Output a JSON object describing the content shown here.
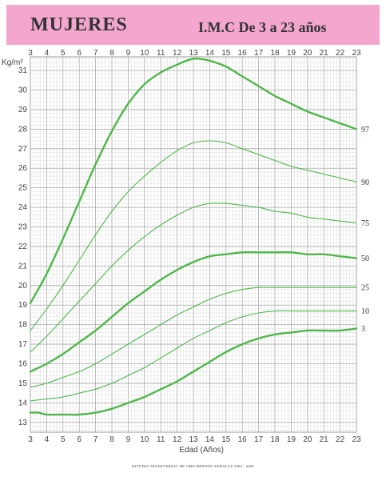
{
  "header": {
    "title": "MUJERES",
    "subtitle": "I.M.C  De 3 a 23 años"
  },
  "footer": {
    "note": "ESTUDIO TRANSVERSAL DE CRECIMIENTO ANDALUZ 2004 - 2005"
  },
  "chart_data": {
    "type": "line",
    "title": "I.M.C  De 3 a 23 años",
    "xlabel": "Edad (Años)",
    "ylabel": "Kg/m²",
    "xlim": [
      3,
      23
    ],
    "ylim": [
      12.5,
      31.7
    ],
    "x_ticks": [
      3,
      4,
      5,
      6,
      7,
      8,
      9,
      10,
      11,
      12,
      13,
      14,
      15,
      16,
      17,
      18,
      19,
      20,
      21,
      22,
      23
    ],
    "y_ticks": [
      13,
      14,
      15,
      16,
      17,
      18,
      19,
      20,
      21,
      22,
      23,
      24,
      25,
      26,
      27,
      28,
      29,
      30,
      31
    ],
    "grid": true,
    "series_color": "#4fb84a",
    "series": [
      {
        "name": "97",
        "bold": true,
        "x": [
          3,
          4,
          5,
          6,
          7,
          8,
          9,
          10,
          11,
          12,
          13,
          14,
          15,
          16,
          17,
          18,
          19,
          20,
          21,
          22,
          23
        ],
        "values": [
          19.1,
          20.6,
          22.4,
          24.3,
          26.2,
          27.9,
          29.3,
          30.3,
          30.9,
          31.3,
          31.6,
          31.5,
          31.2,
          30.7,
          30.2,
          29.7,
          29.3,
          28.9,
          28.6,
          28.3,
          28.0
        ]
      },
      {
        "name": "90",
        "bold": false,
        "x": [
          3,
          4,
          5,
          6,
          7,
          8,
          9,
          10,
          11,
          12,
          13,
          14,
          15,
          16,
          17,
          18,
          19,
          20,
          21,
          22,
          23
        ],
        "values": [
          17.7,
          18.8,
          20.0,
          21.3,
          22.6,
          23.8,
          24.8,
          25.6,
          26.3,
          26.9,
          27.3,
          27.4,
          27.3,
          27.0,
          26.7,
          26.4,
          26.1,
          25.9,
          25.7,
          25.5,
          25.3
        ]
      },
      {
        "name": "75",
        "bold": false,
        "x": [
          3,
          4,
          5,
          6,
          7,
          8,
          9,
          10,
          11,
          12,
          13,
          14,
          15,
          16,
          17,
          18,
          19,
          20,
          21,
          22,
          23
        ],
        "values": [
          16.6,
          17.4,
          18.3,
          19.2,
          20.1,
          21.0,
          21.8,
          22.5,
          23.1,
          23.6,
          24.0,
          24.2,
          24.2,
          24.1,
          24.0,
          23.8,
          23.7,
          23.5,
          23.4,
          23.3,
          23.2
        ]
      },
      {
        "name": "50",
        "bold": true,
        "x": [
          3,
          4,
          5,
          6,
          7,
          8,
          9,
          10,
          11,
          12,
          13,
          14,
          15,
          16,
          17,
          18,
          19,
          20,
          21,
          22,
          23
        ],
        "values": [
          15.6,
          16.0,
          16.5,
          17.1,
          17.7,
          18.4,
          19.1,
          19.7,
          20.3,
          20.8,
          21.2,
          21.5,
          21.6,
          21.7,
          21.7,
          21.7,
          21.7,
          21.6,
          21.6,
          21.5,
          21.4
        ]
      },
      {
        "name": "25",
        "bold": false,
        "x": [
          3,
          4,
          5,
          6,
          7,
          8,
          9,
          10,
          11,
          12,
          13,
          14,
          15,
          16,
          17,
          18,
          19,
          20,
          21,
          22,
          23
        ],
        "values": [
          14.8,
          15.0,
          15.3,
          15.6,
          16.0,
          16.5,
          17.0,
          17.5,
          18.0,
          18.5,
          18.9,
          19.3,
          19.6,
          19.8,
          19.9,
          19.9,
          19.9,
          19.9,
          19.9,
          19.9,
          19.9
        ]
      },
      {
        "name": "10",
        "bold": false,
        "x": [
          3,
          4,
          5,
          6,
          7,
          8,
          9,
          10,
          11,
          12,
          13,
          14,
          15,
          16,
          17,
          18,
          19,
          20,
          21,
          22,
          23
        ],
        "values": [
          14.1,
          14.2,
          14.3,
          14.5,
          14.7,
          15.0,
          15.4,
          15.8,
          16.3,
          16.8,
          17.3,
          17.7,
          18.1,
          18.4,
          18.6,
          18.7,
          18.7,
          18.7,
          18.7,
          18.7,
          18.7
        ]
      },
      {
        "name": "3",
        "bold": true,
        "x": [
          3,
          3.5,
          4,
          5,
          6,
          7,
          8,
          9,
          10,
          11,
          12,
          13,
          14,
          15,
          16,
          17,
          18,
          19,
          20,
          21,
          22,
          23
        ],
        "values": [
          13.5,
          13.5,
          13.4,
          13.4,
          13.4,
          13.5,
          13.7,
          14.0,
          14.3,
          14.7,
          15.1,
          15.6,
          16.1,
          16.6,
          17.0,
          17.3,
          17.5,
          17.6,
          17.7,
          17.7,
          17.7,
          17.8
        ]
      }
    ]
  }
}
